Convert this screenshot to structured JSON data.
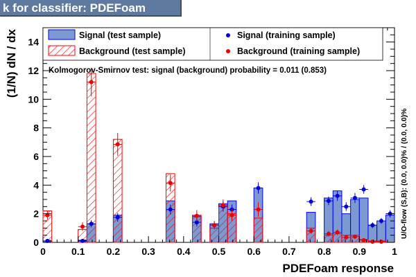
{
  "window": {
    "title": "k for classifier: PDEFoam"
  },
  "chart_data": {
    "type": "bar",
    "xlabel": "PDEFoam response",
    "ylabel": "(1/N) dN / dx",
    "xlim": [
      0,
      1
    ],
    "ylim": [
      0,
      15
    ],
    "bin_width": 0.025,
    "x_ticks": [
      "0",
      "0.1",
      "0.2",
      "0.3",
      "0.4",
      "0.5",
      "0.6",
      "0.7",
      "0.8",
      "0.9",
      "1"
    ],
    "y_ticks": [
      "0",
      "2",
      "4",
      "6",
      "8",
      "10",
      "12",
      "14"
    ],
    "annotation": "Kolmogorov-Smirnov test: signal (background) probability = 0.011 (0.853)",
    "overflow_label": "U/O-flow (S,B): (0.0, 0.0)% / (0.0, 0.0)%",
    "legend": [
      {
        "label": "Signal (test sample)",
        "style": "filled-box"
      },
      {
        "label": "Background (test sample)",
        "style": "hatched-box"
      },
      {
        "label": "Signal (training sample)",
        "style": "marker"
      },
      {
        "label": "Background (training sample)",
        "style": "marker"
      }
    ],
    "colors": {
      "signal_fill": "#7d99d1",
      "signal_line": "#0000ee",
      "background": "#ff0000",
      "signal_marker": "#0000dd",
      "background_marker": "#ee0000"
    },
    "series": [
      {
        "name": "Signal (test sample)",
        "x": [
          0.0,
          0.1,
          0.125,
          0.2,
          0.35,
          0.425,
          0.475,
          0.5,
          0.525,
          0.6,
          0.75,
          0.8,
          0.825,
          0.85,
          0.875,
          0.9,
          0.925,
          0.95,
          0.975
        ],
        "values": [
          0.1,
          0.15,
          1.3,
          1.9,
          2.9,
          1.8,
          1.3,
          2.7,
          2.9,
          3.8,
          2.1,
          3.1,
          3.6,
          2.0,
          3.0,
          3.1,
          1.2,
          1.5,
          1.9
        ]
      },
      {
        "name": "Background (test sample)",
        "x": [
          0.0,
          0.1,
          0.125,
          0.2,
          0.35,
          0.425,
          0.475,
          0.5,
          0.525,
          0.6,
          0.75,
          0.8,
          0.825,
          0.85,
          0.875,
          0.9,
          0.925,
          0.95
        ],
        "values": [
          2.2,
          0.9,
          11.8,
          7.2,
          4.8,
          1.9,
          1.0,
          2.5,
          2.0,
          1.7,
          1.0,
          0.5,
          0.6,
          0.5,
          0.5,
          0.2,
          0.1,
          0.1
        ]
      },
      {
        "name": "Signal (training sample)",
        "x": [
          0.0,
          0.1,
          0.125,
          0.2,
          0.35,
          0.425,
          0.475,
          0.5,
          0.525,
          0.6,
          0.75,
          0.8,
          0.825,
          0.85,
          0.875,
          0.9,
          0.925,
          0.95,
          0.975
        ],
        "values": [
          0.1,
          0.1,
          1.3,
          1.75,
          2.3,
          1.4,
          1.2,
          2.5,
          2.3,
          3.8,
          2.85,
          2.9,
          3.25,
          2.5,
          3.1,
          3.7,
          1.2,
          1.5,
          2.0
        ],
        "errors": [
          0.08,
          0.1,
          0.25,
          0.3,
          0.35,
          0.3,
          0.25,
          0.35,
          0.35,
          0.4,
          0.3,
          0.3,
          0.35,
          0.3,
          0.35,
          0.3,
          0.2,
          0.2,
          0.25
        ]
      },
      {
        "name": "Background (training sample)",
        "x": [
          0.0,
          0.1,
          0.125,
          0.2,
          0.35,
          0.425,
          0.475,
          0.5,
          0.525,
          0.6,
          0.75,
          0.8,
          0.825,
          0.85,
          0.875,
          0.9,
          0.925,
          0.95
        ],
        "values": [
          1.9,
          1.1,
          11.2,
          6.85,
          4.15,
          1.85,
          1.2,
          2.6,
          1.9,
          2.3,
          0.8,
          0.6,
          0.7,
          0.35,
          0.4,
          0.15,
          0.05,
          0.05
        ],
        "errors": [
          0.3,
          0.3,
          1.0,
          0.8,
          0.6,
          0.4,
          0.3,
          0.4,
          0.4,
          0.5,
          0.2,
          0.2,
          0.2,
          0.15,
          0.15,
          0.1,
          0.05,
          0.05
        ]
      }
    ]
  }
}
